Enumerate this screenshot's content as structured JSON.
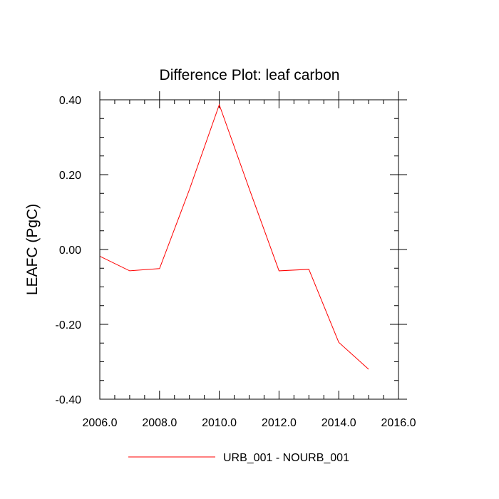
{
  "chart_data": {
    "type": "line",
    "title": "Difference Plot: leaf carbon",
    "xlabel": "",
    "ylabel": "LEAFC  (PgC)",
    "xlim": [
      2006,
      2016
    ],
    "ylim": [
      -0.4,
      0.4
    ],
    "xticks": [
      2006,
      2008,
      2010,
      2012,
      2014,
      2016
    ],
    "xtick_labels": [
      "2006.0",
      "2008.0",
      "2010.0",
      "2012.0",
      "2014.0",
      "2016.0"
    ],
    "yticks": [
      -0.4,
      -0.2,
      0.0,
      0.2,
      0.4
    ],
    "ytick_labels": [
      "-0.40",
      "-0.20",
      "0.00",
      "0.20",
      "0.40"
    ],
    "x_minor_step": 0.5,
    "y_minor_step": 0.05,
    "grid": false,
    "legend_position": "bottom-center",
    "series": [
      {
        "name": "URB_001 - NOURB_001",
        "color": "#ff0000",
        "x": [
          2006,
          2007,
          2008,
          2009,
          2010,
          2011,
          2012,
          2013,
          2014,
          2015
        ],
        "values": [
          -0.018,
          -0.057,
          -0.051,
          0.16,
          0.387,
          0.163,
          -0.057,
          -0.053,
          -0.248,
          -0.32
        ]
      }
    ]
  }
}
